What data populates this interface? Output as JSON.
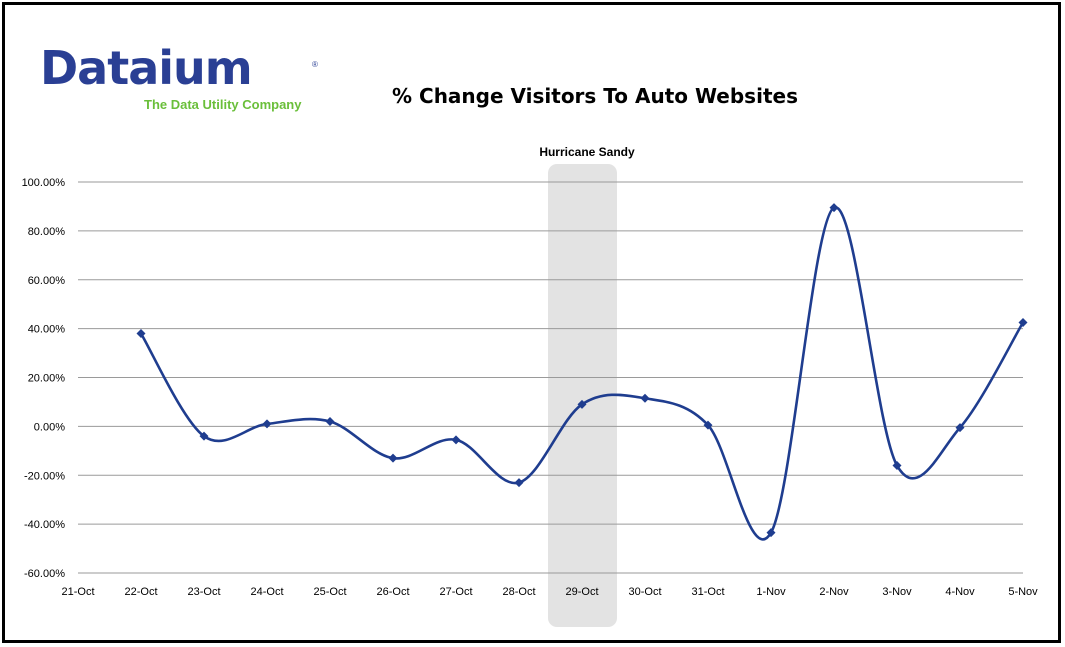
{
  "logo": {
    "wordmark": "Dataium",
    "registered": "®",
    "tagline": "The Data Utility Company"
  },
  "colors": {
    "line": "#1f3d8f",
    "grid": "#9a9a9a",
    "highlight": "#e3e3e3",
    "logo_blue": "#2a3f94",
    "logo_green": "#6abf3a"
  },
  "chart_data": {
    "type": "line",
    "title": "% Change Visitors To Auto Websites",
    "xlabel": "",
    "ylabel": "",
    "categories": [
      "21-Oct",
      "22-Oct",
      "23-Oct",
      "24-Oct",
      "25-Oct",
      "26-Oct",
      "27-Oct",
      "28-Oct",
      "29-Oct",
      "30-Oct",
      "31-Oct",
      "1-Nov",
      "2-Nov",
      "3-Nov",
      "4-Nov",
      "5-Nov"
    ],
    "y_ticks": [
      "100.00%",
      "80.00%",
      "60.00%",
      "40.00%",
      "20.00%",
      "0.00%",
      "-20.00%",
      "-40.00%",
      "-60.00%"
    ],
    "ylim": [
      -60,
      100
    ],
    "grid": true,
    "smooth": true,
    "marker": "diamond",
    "series": [
      {
        "values": [
          null,
          38,
          -4,
          1,
          2,
          -13,
          -5.5,
          -23,
          9,
          11.5,
          0.5,
          -43.5,
          89.5,
          -16,
          -0.5,
          42.5
        ]
      }
    ],
    "annotations": [
      {
        "text": "Hurricane Sandy",
        "category": "29-Oct",
        "type": "shaded-band"
      }
    ]
  }
}
